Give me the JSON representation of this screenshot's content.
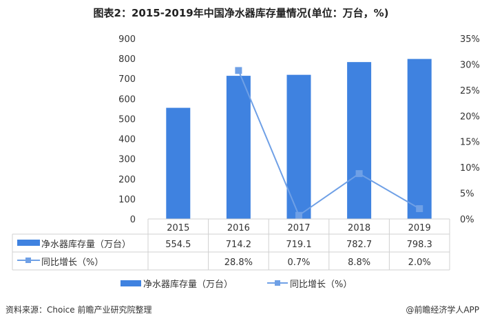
{
  "chart_data": {
    "type": "bar+line",
    "title": "图表2：2015-2019年中国净水器库存量情况(单位：万台，%)",
    "categories": [
      "2015",
      "2016",
      "2017",
      "2018",
      "2019"
    ],
    "series": [
      {
        "name": "净水器库存量（万台）",
        "type": "bar",
        "axis": "left",
        "values": [
          554.5,
          714.2,
          719.1,
          782.7,
          798.3
        ],
        "labels": [
          "554.5",
          "714.2",
          "719.1",
          "782.7",
          "798.3"
        ],
        "color": "#3f82e0"
      },
      {
        "name": "同比增长（%）",
        "type": "line",
        "axis": "right",
        "values": [
          null,
          28.8,
          0.7,
          8.8,
          2.0
        ],
        "labels": [
          "",
          "28.8%",
          "0.7%",
          "8.8%",
          "2.0%"
        ],
        "color": "#6fa0e6"
      }
    ],
    "left_axis": {
      "ylim": [
        0,
        900
      ],
      "ticks": [
        "0",
        "100",
        "200",
        "300",
        "400",
        "500",
        "600",
        "700",
        "800",
        "900"
      ]
    },
    "right_axis": {
      "ylim": [
        0,
        35
      ],
      "ticks": [
        "0%",
        "5%",
        "10%",
        "15%",
        "20%",
        "25%",
        "30%",
        "35%"
      ]
    },
    "grid": false,
    "legend": "bottom",
    "data_table": true
  },
  "footer": {
    "source": "资料来源：Choice 前瞻产业研究院整理",
    "brand": "@前瞻经济学人APP"
  },
  "watermark": "前瞻产业研究院"
}
